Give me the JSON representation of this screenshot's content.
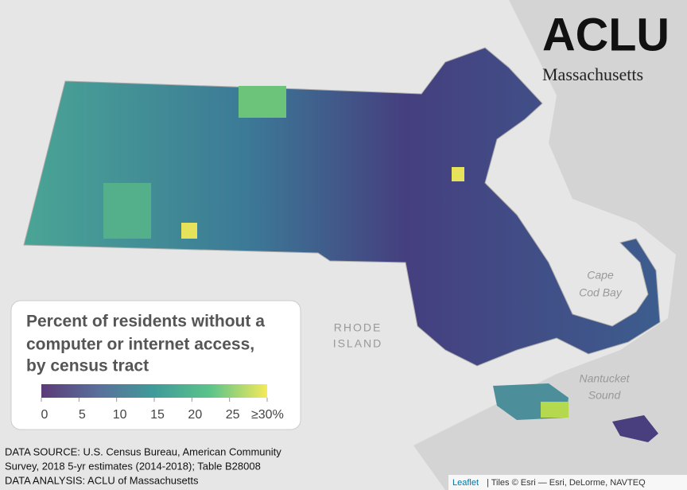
{
  "logo": {
    "name": "ACLU",
    "region": "Massachusetts"
  },
  "map_labels": {
    "bay": [
      "Cape",
      "Cod Bay"
    ],
    "state": [
      "RHODE",
      "ISLAND"
    ],
    "sound": [
      "Nantucket",
      "Sound"
    ]
  },
  "legend": {
    "title": [
      "Percent of residents without a",
      "computer or internet access,",
      "by census tract"
    ],
    "lim": [
      0,
      30
    ],
    "ticks": [
      0,
      5,
      10,
      15,
      20,
      25,
      {
        "value": 30,
        "label": "≥30%"
      }
    ],
    "colors": [
      "#5b3a78",
      "#5a6f9b",
      "#3f9b9a",
      "#5cc48a",
      "#f5ea5a"
    ]
  },
  "source": [
    "DATA SOURCE: U.S. Census Bureau, American Community",
    "Survey, 2018 5-yr estimates (2014-2018); Table B28008",
    "DATA ANALYSIS: ACLU of Massachusetts"
  ],
  "attribution": {
    "link": "Leaflet",
    "text": "| Tiles © Esri — Esri, DeLorme, NAVTEQ"
  }
}
